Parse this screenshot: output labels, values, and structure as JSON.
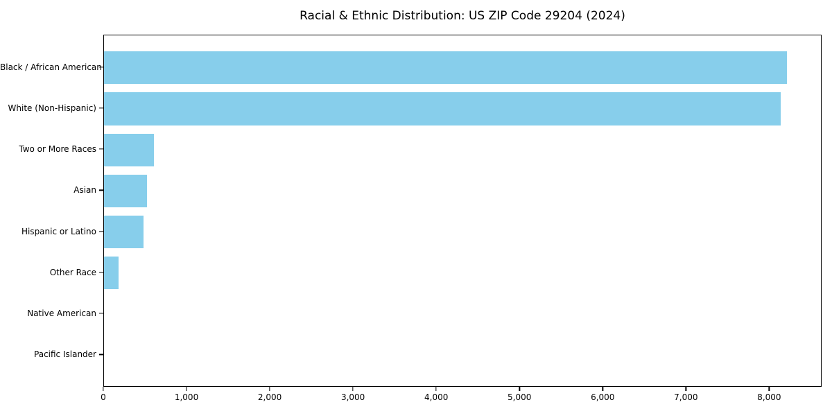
{
  "chart_data": {
    "type": "bar",
    "orientation": "horizontal",
    "title": "Racial & Ethnic Distribution: US ZIP Code 29204 (2024)",
    "xlabel": "",
    "ylabel": "",
    "categories": [
      "Black / African American",
      "White (Non-Hispanic)",
      "Two or More Races",
      "Asian",
      "Hispanic or Latino",
      "Other Race",
      "Native American",
      "Pacific Islander"
    ],
    "values": [
      8220,
      8150,
      600,
      515,
      475,
      175,
      0,
      0
    ],
    "xlim": [
      0,
      8630
    ],
    "x_tick_values": [
      0,
      1000,
      2000,
      3000,
      4000,
      5000,
      6000,
      7000,
      8000
    ],
    "x_tick_labels": [
      "0",
      "1,000",
      "2,000",
      "3,000",
      "4,000",
      "5,000",
      "6,000",
      "7,000",
      "8,000"
    ],
    "bar_color": "#87CEEB",
    "frame_color": "#000000",
    "text_color": "#000000",
    "background": "#FFFFFF",
    "grid": false,
    "legend": null
  }
}
